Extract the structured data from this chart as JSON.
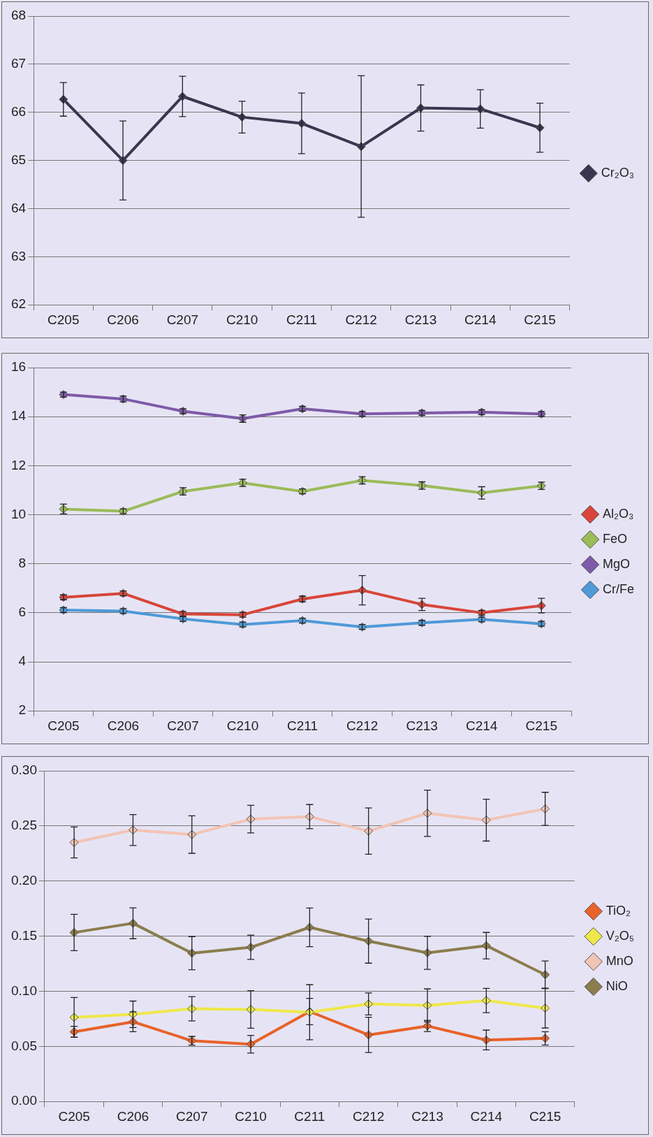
{
  "chart_data": [
    {
      "type": "line",
      "categories": [
        "C205",
        "C206",
        "C207",
        "C210",
        "C211",
        "C212",
        "C213",
        "C214",
        "C215"
      ],
      "ylim": [
        62,
        68
      ],
      "yticks": [
        62,
        63,
        64,
        65,
        66,
        67,
        68
      ],
      "grid": "y",
      "legend": "right",
      "marker": "diamond",
      "line_style": "solid",
      "series": [
        {
          "name": "Cr₂O₃",
          "color": "#3a3650",
          "values": [
            66.27,
            65.0,
            66.33,
            65.9,
            65.77,
            65.29,
            66.09,
            66.07,
            65.68
          ],
          "errors": [
            0.35,
            0.82,
            0.42,
            0.33,
            0.63,
            1.47,
            0.48,
            0.4,
            0.51
          ]
        }
      ]
    },
    {
      "type": "line",
      "categories": [
        "C205",
        "C206",
        "C207",
        "C210",
        "C211",
        "C212",
        "C213",
        "C214",
        "C215"
      ],
      "ylim": [
        2,
        16
      ],
      "yticks": [
        2,
        4,
        6,
        8,
        10,
        12,
        14,
        16
      ],
      "grid": "y",
      "legend": "right",
      "marker": "diamond",
      "line_style": "solid",
      "series": [
        {
          "name": "Al₂O₃",
          "color": "#d9453a",
          "values": [
            6.63,
            6.79,
            5.95,
            5.92,
            6.56,
            6.92,
            6.34,
            6.0,
            6.29
          ],
          "errors": [
            0.1,
            0.1,
            0.1,
            0.1,
            0.12,
            0.6,
            0.25,
            0.1,
            0.3
          ]
        },
        {
          "name": "FeO",
          "color": "#9bbb59",
          "values": [
            10.23,
            10.14,
            10.95,
            11.3,
            10.95,
            11.4,
            11.19,
            10.89,
            11.18
          ],
          "errors": [
            0.2,
            0.1,
            0.15,
            0.15,
            0.1,
            0.15,
            0.15,
            0.25,
            0.15
          ]
        },
        {
          "name": "MgO",
          "color": "#7e5aa8",
          "values": [
            14.9,
            14.72,
            14.22,
            13.92,
            14.32,
            14.11,
            14.15,
            14.18,
            14.11
          ],
          "errors": [
            0.1,
            0.12,
            0.1,
            0.15,
            0.1,
            0.1,
            0.1,
            0.1,
            0.1
          ]
        },
        {
          "name": "Cr/Fe",
          "color": "#4f9ad8",
          "values": [
            6.11,
            6.07,
            5.75,
            5.52,
            5.68,
            5.42,
            5.59,
            5.73,
            5.55
          ],
          "errors": [
            0.1,
            0.1,
            0.1,
            0.1,
            0.1,
            0.1,
            0.1,
            0.1,
            0.1
          ]
        }
      ]
    },
    {
      "type": "line",
      "categories": [
        "C205",
        "C206",
        "C207",
        "C210",
        "C211",
        "C212",
        "C213",
        "C214",
        "C215"
      ],
      "ylim": [
        0,
        0.3
      ],
      "yticks": [
        {
          "value": 0,
          "label": "0.00"
        },
        {
          "value": 0.05,
          "label": "0.05"
        },
        {
          "value": 0.1,
          "label": "0.10"
        },
        {
          "value": 0.15,
          "label": "0.15"
        },
        {
          "value": 0.2,
          "label": "0.20"
        },
        {
          "value": 0.25,
          "label": "0.25"
        },
        {
          "value": 0.3,
          "label": "0.30"
        }
      ],
      "grid": "y",
      "legend": "right",
      "marker": "diamond",
      "line_style": "solid",
      "series": [
        {
          "name": "TiO₂",
          "color": "#e8622a",
          "values": [
            0.0632,
            0.0723,
            0.0551,
            0.052,
            0.0816,
            0.0604,
            0.0685,
            0.0558,
            0.0573
          ],
          "errors": [
            0.005,
            0.009,
            0.004,
            0.008,
            0.012,
            0.016,
            0.005,
            0.009,
            0.006
          ]
        },
        {
          "name": "V₂O₅",
          "color": "#eee84a",
          "values": [
            0.0763,
            0.0791,
            0.0841,
            0.0835,
            0.081,
            0.0885,
            0.0872,
            0.0916,
            0.0847
          ],
          "errors": [
            0.018,
            0.012,
            0.011,
            0.017,
            0.025,
            0.01,
            0.015,
            0.011,
            0.018
          ]
        },
        {
          "name": "MnO",
          "color": "#f2c4b4",
          "values": [
            0.235,
            0.2463,
            0.2422,
            0.2562,
            0.2584,
            0.2453,
            0.2615,
            0.2553,
            0.2655
          ],
          "errors": [
            0.014,
            0.014,
            0.017,
            0.0125,
            0.011,
            0.021,
            0.021,
            0.019,
            0.015
          ]
        },
        {
          "name": "NiO",
          "color": "#8b7d4e",
          "values": [
            0.1533,
            0.1617,
            0.1346,
            0.1399,
            0.158,
            0.1455,
            0.1349,
            0.1414,
            0.115
          ],
          "errors": [
            0.0165,
            0.014,
            0.015,
            0.011,
            0.0175,
            0.02,
            0.015,
            0.012,
            0.0125
          ]
        }
      ]
    }
  ]
}
